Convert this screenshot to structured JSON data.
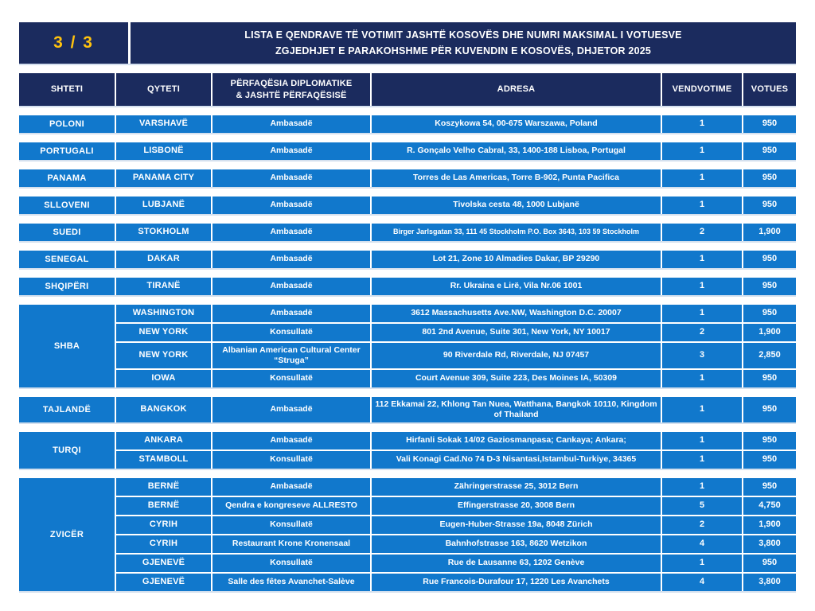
{
  "colors": {
    "navy": "#1b2b5e",
    "blue": "#1178cc",
    "yellow": "#ffc20e"
  },
  "header": {
    "page_indicator": "3 / 3",
    "title_line1": "LISTA E QENDRAVE TË VOTIMIT JASHTË KOSOVËS DHE NUMRI MAKSIMAL I VOTUESVE",
    "title_line2": "ZGJEDHJET E PARAKOHSHME PËR KUVENDIN E KOSOVËS, DHJETOR 2025"
  },
  "table": {
    "headers": [
      "SHTETI",
      "QYTETI",
      "PËRFAQËSIA DIPLOMATIKE\n& JASHTË PËRFAQËSISË",
      "ADRESA",
      "VENDVOTIME",
      "VOTUES"
    ],
    "groups": [
      {
        "country": "POLONI",
        "rows": [
          {
            "city": "VARSHAVË",
            "office": "Ambasadë",
            "address": "Koszykowa 54, 00-675 Warszawa, Poland",
            "stations": "1",
            "voters": "950"
          }
        ]
      },
      {
        "country": "PORTUGALI",
        "rows": [
          {
            "city": "LISBONË",
            "office": "Ambasadë",
            "address": "R. Gonçalo Velho Cabral, 33, 1400-188 Lisboa, Portugal",
            "stations": "1",
            "voters": "950"
          }
        ]
      },
      {
        "country": "PANAMA",
        "rows": [
          {
            "city": "PANAMA CITY",
            "office": "Ambasadë",
            "address": "Torres de Las Americas, Torre B-902, Punta Pacifica",
            "stations": "1",
            "voters": "950"
          }
        ]
      },
      {
        "country": "SLLOVENI",
        "rows": [
          {
            "city": "LUBJANË",
            "office": "Ambasadë",
            "address": "Tivolska cesta 48, 1000 Lubjanë",
            "stations": "1",
            "voters": "950"
          }
        ]
      },
      {
        "country": "SUEDI",
        "rows": [
          {
            "city": "STOKHOLM",
            "office": "Ambasadë",
            "address": "Birger Jarlsgatan 33, 111 45 Stockholm P.O. Box 3643, 103 59  Stockholm",
            "stations": "2",
            "voters": "1,900",
            "small_address": true
          }
        ]
      },
      {
        "country": "SENEGAL",
        "rows": [
          {
            "city": "DAKAR",
            "office": "Ambasadë",
            "address": "Lot 21, Zone 10 Almadies Dakar, BP 29290",
            "stations": "1",
            "voters": "950"
          }
        ]
      },
      {
        "country": "SHQIPËRI",
        "rows": [
          {
            "city": "TIRANË",
            "office": "Ambasadë",
            "address": "Rr. Ukraina e Lirë, Vila Nr.06 1001",
            "stations": "1",
            "voters": "950"
          }
        ]
      },
      {
        "country": "SHBA",
        "rows": [
          {
            "city": "WASHINGTON",
            "office": "Ambasadë",
            "address": "3612 Massachusetts Ave.NW, Washington D.C. 20007",
            "stations": "1",
            "voters": "950"
          },
          {
            "city": "NEW YORK",
            "office": "Konsullatë",
            "address": "801 2nd Avenue, Suite 301, New York, NY 10017",
            "stations": "2",
            "voters": "1,900"
          },
          {
            "city": "NEW YORK",
            "office": "Albanian American Cultural Center “Struga”",
            "address": "90 Riverdale Rd, Riverdale, NJ 07457",
            "stations": "3",
            "voters": "2,850",
            "tall": true
          },
          {
            "city": "IOWA",
            "office": "Konsullatë",
            "address": "Court Avenue 309, Suite 223, Des Moines IA, 50309",
            "stations": "1",
            "voters": "950"
          }
        ]
      },
      {
        "country": "TAJLANDË",
        "rows": [
          {
            "city": "BANGKOK",
            "office": "Ambasadë",
            "address": "112 Ekkamai 22, Khlong Tan Nuea, Watthana, Bangkok 10110, Kingdom of Thailand",
            "stations": "1",
            "voters": "950",
            "tall": true
          }
        ]
      },
      {
        "country": "TURQI",
        "rows": [
          {
            "city": "ANKARA",
            "office": "Ambasadë",
            "address": "Hirfanli Sokak 14/02 Gaziosmanpasa; Cankaya; Ankara;",
            "stations": "1",
            "voters": "950"
          },
          {
            "city": "STAMBOLL",
            "office": "Konsullatë",
            "address": "Vali Konagi Cad.No 74 D-3 Nisantasi,Istambul-Turkiye, 34365",
            "stations": "1",
            "voters": "950"
          }
        ]
      },
      {
        "country": "ZVICËR",
        "rows": [
          {
            "city": "BERNË",
            "office": "Ambasadë",
            "address": "Zähringerstrasse 25, 3012 Bern",
            "stations": "1",
            "voters": "950"
          },
          {
            "city": "BERNË",
            "office": "Qendra e kongreseve ALLRESTO",
            "address": "Effingerstrasse 20, 3008 Bern",
            "stations": "5",
            "voters": "4,750"
          },
          {
            "city": "CYRIH",
            "office": "Konsullatë",
            "address": "Eugen-Huber-Strasse 19a, 8048 Zürich",
            "stations": "2",
            "voters": "1,900"
          },
          {
            "city": "CYRIH",
            "office": "Restaurant Krone Kronensaal",
            "address": "Bahnhofstrasse 163, 8620 Wetzikon",
            "stations": "4",
            "voters": "3,800"
          },
          {
            "city": "GJENEVË",
            "office": "Konsullatë",
            "address": "Rue de Lausanne 63, 1202 Genève",
            "stations": "1",
            "voters": "950"
          },
          {
            "city": "GJENEVË",
            "office": "Salle des fêtes Avanchet-Salève",
            "address": "Rue Francois-Durafour 17, 1220 Les Avanchets",
            "stations": "4",
            "voters": "3,800"
          }
        ]
      }
    ]
  }
}
